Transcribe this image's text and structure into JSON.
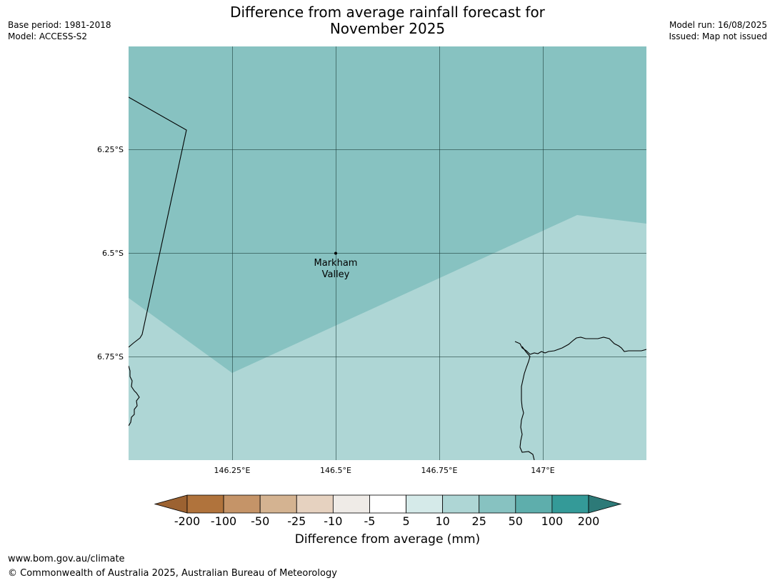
{
  "title_line1": "Difference from average rainfall forecast for",
  "title_line2": "November 2025",
  "base_period": "Base period: 1981-2018",
  "model": "Model: ACCESS-S2",
  "model_run": "Model run: 16/08/2025",
  "issued": "Issued: Map not issued",
  "map": {
    "lat_labels": [
      "6.25°S",
      "6.5°S",
      "6.75°S"
    ],
    "lon_labels": [
      "146.25°E",
      "146.5°E",
      "146.75°E",
      "147°E"
    ],
    "place": {
      "line1": "Markham",
      "line2": "Valley"
    },
    "category_colors": {
      "25_to_50": "#87c2c1",
      "10_to_25": "#aed6d5"
    }
  },
  "colorbar": {
    "ticks": [
      "-200",
      "-100",
      "-50",
      "-25",
      "-10",
      "-5",
      "5",
      "10",
      "25",
      "50",
      "100",
      "200"
    ],
    "colors": [
      "#9c6231",
      "#b0733c",
      "#c59468",
      "#d4b391",
      "#e6d2c0",
      "#efebe7",
      "#ffffff",
      "#d5eae9",
      "#aed6d5",
      "#87c2c1",
      "#5eaeac",
      "#349a98",
      "#2d7a78"
    ],
    "label": "Difference from average (mm)"
  },
  "footer_url": "www.bom.gov.au/climate",
  "footer_copyright": "© Commonwealth of Australia 2025, Australian Bureau of Meteorology"
}
